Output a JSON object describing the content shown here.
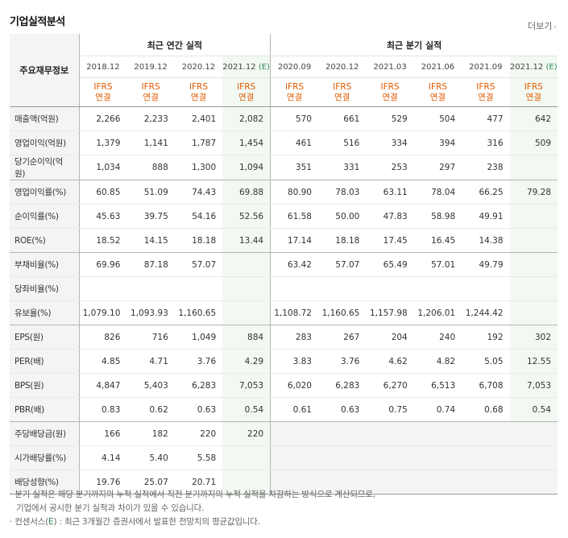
{
  "header": {
    "title": "기업실적분석",
    "more_label": "더보기",
    "more_arrow": "›"
  },
  "table": {
    "row_header_label": "주요재무정보",
    "group_annual": "최근 연간 실적",
    "group_quarter": "최근 분기 실적",
    "periods": [
      {
        "label": "2018.12",
        "est": ""
      },
      {
        "label": "2019.12",
        "est": ""
      },
      {
        "label": "2020.12",
        "est": ""
      },
      {
        "label": "2021.12",
        "est": "(E)"
      },
      {
        "label": "2020.09",
        "est": ""
      },
      {
        "label": "2020.12",
        "est": ""
      },
      {
        "label": "2021.03",
        "est": ""
      },
      {
        "label": "2021.06",
        "est": ""
      },
      {
        "label": "2021.09",
        "est": ""
      },
      {
        "label": "2021.12",
        "est": "(E)"
      }
    ],
    "basis_top": "IFRS",
    "basis_bottom": "연결",
    "rows": [
      {
        "label": "매출액(억원)",
        "values": [
          "2,266",
          "2,233",
          "2,401",
          "2,082",
          "570",
          "661",
          "529",
          "504",
          "477",
          "642"
        ]
      },
      {
        "label": "영업이익(억원)",
        "values": [
          "1,379",
          "1,141",
          "1,787",
          "1,454",
          "461",
          "516",
          "334",
          "394",
          "316",
          "509"
        ]
      },
      {
        "label": "당기순이익(억원)",
        "values": [
          "1,034",
          "888",
          "1,300",
          "1,094",
          "351",
          "331",
          "253",
          "297",
          "238",
          ""
        ]
      },
      {
        "label": "영업이익률(%)",
        "values": [
          "60.85",
          "51.09",
          "74.43",
          "69.88",
          "80.90",
          "78.03",
          "63.11",
          "78.04",
          "66.25",
          "79.28"
        ]
      },
      {
        "label": "순이익률(%)",
        "values": [
          "45.63",
          "39.75",
          "54.16",
          "52.56",
          "61.58",
          "50.00",
          "47.83",
          "58.98",
          "49.91",
          ""
        ]
      },
      {
        "label": "ROE(%)",
        "values": [
          "18.52",
          "14.15",
          "18.18",
          "13.44",
          "17.14",
          "18.18",
          "17.45",
          "16.45",
          "14.38",
          ""
        ]
      },
      {
        "label": "부채비율(%)",
        "values": [
          "69.96",
          "87.18",
          "57.07",
          "",
          "63.42",
          "57.07",
          "65.49",
          "57.01",
          "49.79",
          ""
        ]
      },
      {
        "label": "당좌비율(%)",
        "values": [
          "",
          "",
          "",
          "",
          "",
          "",
          "",
          "",
          "",
          ""
        ]
      },
      {
        "label": "유보율(%)",
        "values": [
          "1,079.10",
          "1,093.93",
          "1,160.65",
          "",
          "1,108.72",
          "1,160.65",
          "1,157.98",
          "1,206.01",
          "1,244.42",
          ""
        ]
      },
      {
        "label": "EPS(원)",
        "values": [
          "826",
          "716",
          "1,049",
          "884",
          "283",
          "267",
          "204",
          "240",
          "192",
          "302"
        ]
      },
      {
        "label": "PER(배)",
        "values": [
          "4.85",
          "4.71",
          "3.76",
          "4.29",
          "3.83",
          "3.76",
          "4.62",
          "4.82",
          "5.05",
          "12.55"
        ]
      },
      {
        "label": "BPS(원)",
        "values": [
          "4,847",
          "5,403",
          "6,283",
          "7,053",
          "6,020",
          "6,283",
          "6,270",
          "6,513",
          "6,708",
          "7,053"
        ]
      },
      {
        "label": "PBR(배)",
        "values": [
          "0.83",
          "0.62",
          "0.63",
          "0.54",
          "0.61",
          "0.63",
          "0.75",
          "0.74",
          "0.68",
          "0.54"
        ]
      },
      {
        "label": "주당배당금(원)",
        "values": [
          "166",
          "182",
          "220",
          "220",
          "",
          "",
          "",
          "",
          "",
          ""
        ]
      },
      {
        "label": "시가배당률(%)",
        "values": [
          "4.14",
          "5.40",
          "5.58",
          "",
          "",
          "",
          "",
          "",
          "",
          ""
        ]
      },
      {
        "label": "배당성향(%)",
        "values": [
          "19.76",
          "25.07",
          "20.71",
          "",
          "",
          "",
          "",
          "",
          "",
          ""
        ]
      }
    ]
  },
  "notes": {
    "line1": "분기 실적은 해당 분기까지의 누적 실적에서 직전 분기까지의 누적 실적을 차감하는 방식으로 계산되므로,",
    "line2": "기업에서 공시한 분기 실적과 차이가 있을 수 있습니다.",
    "line3_prefix": "컨센서스(",
    "line3_e": "E",
    "line3_suffix": ") : 최근 3개월간 증권사에서 발표한 전망치의 평균값입니다.",
    "bullet": "·"
  }
}
